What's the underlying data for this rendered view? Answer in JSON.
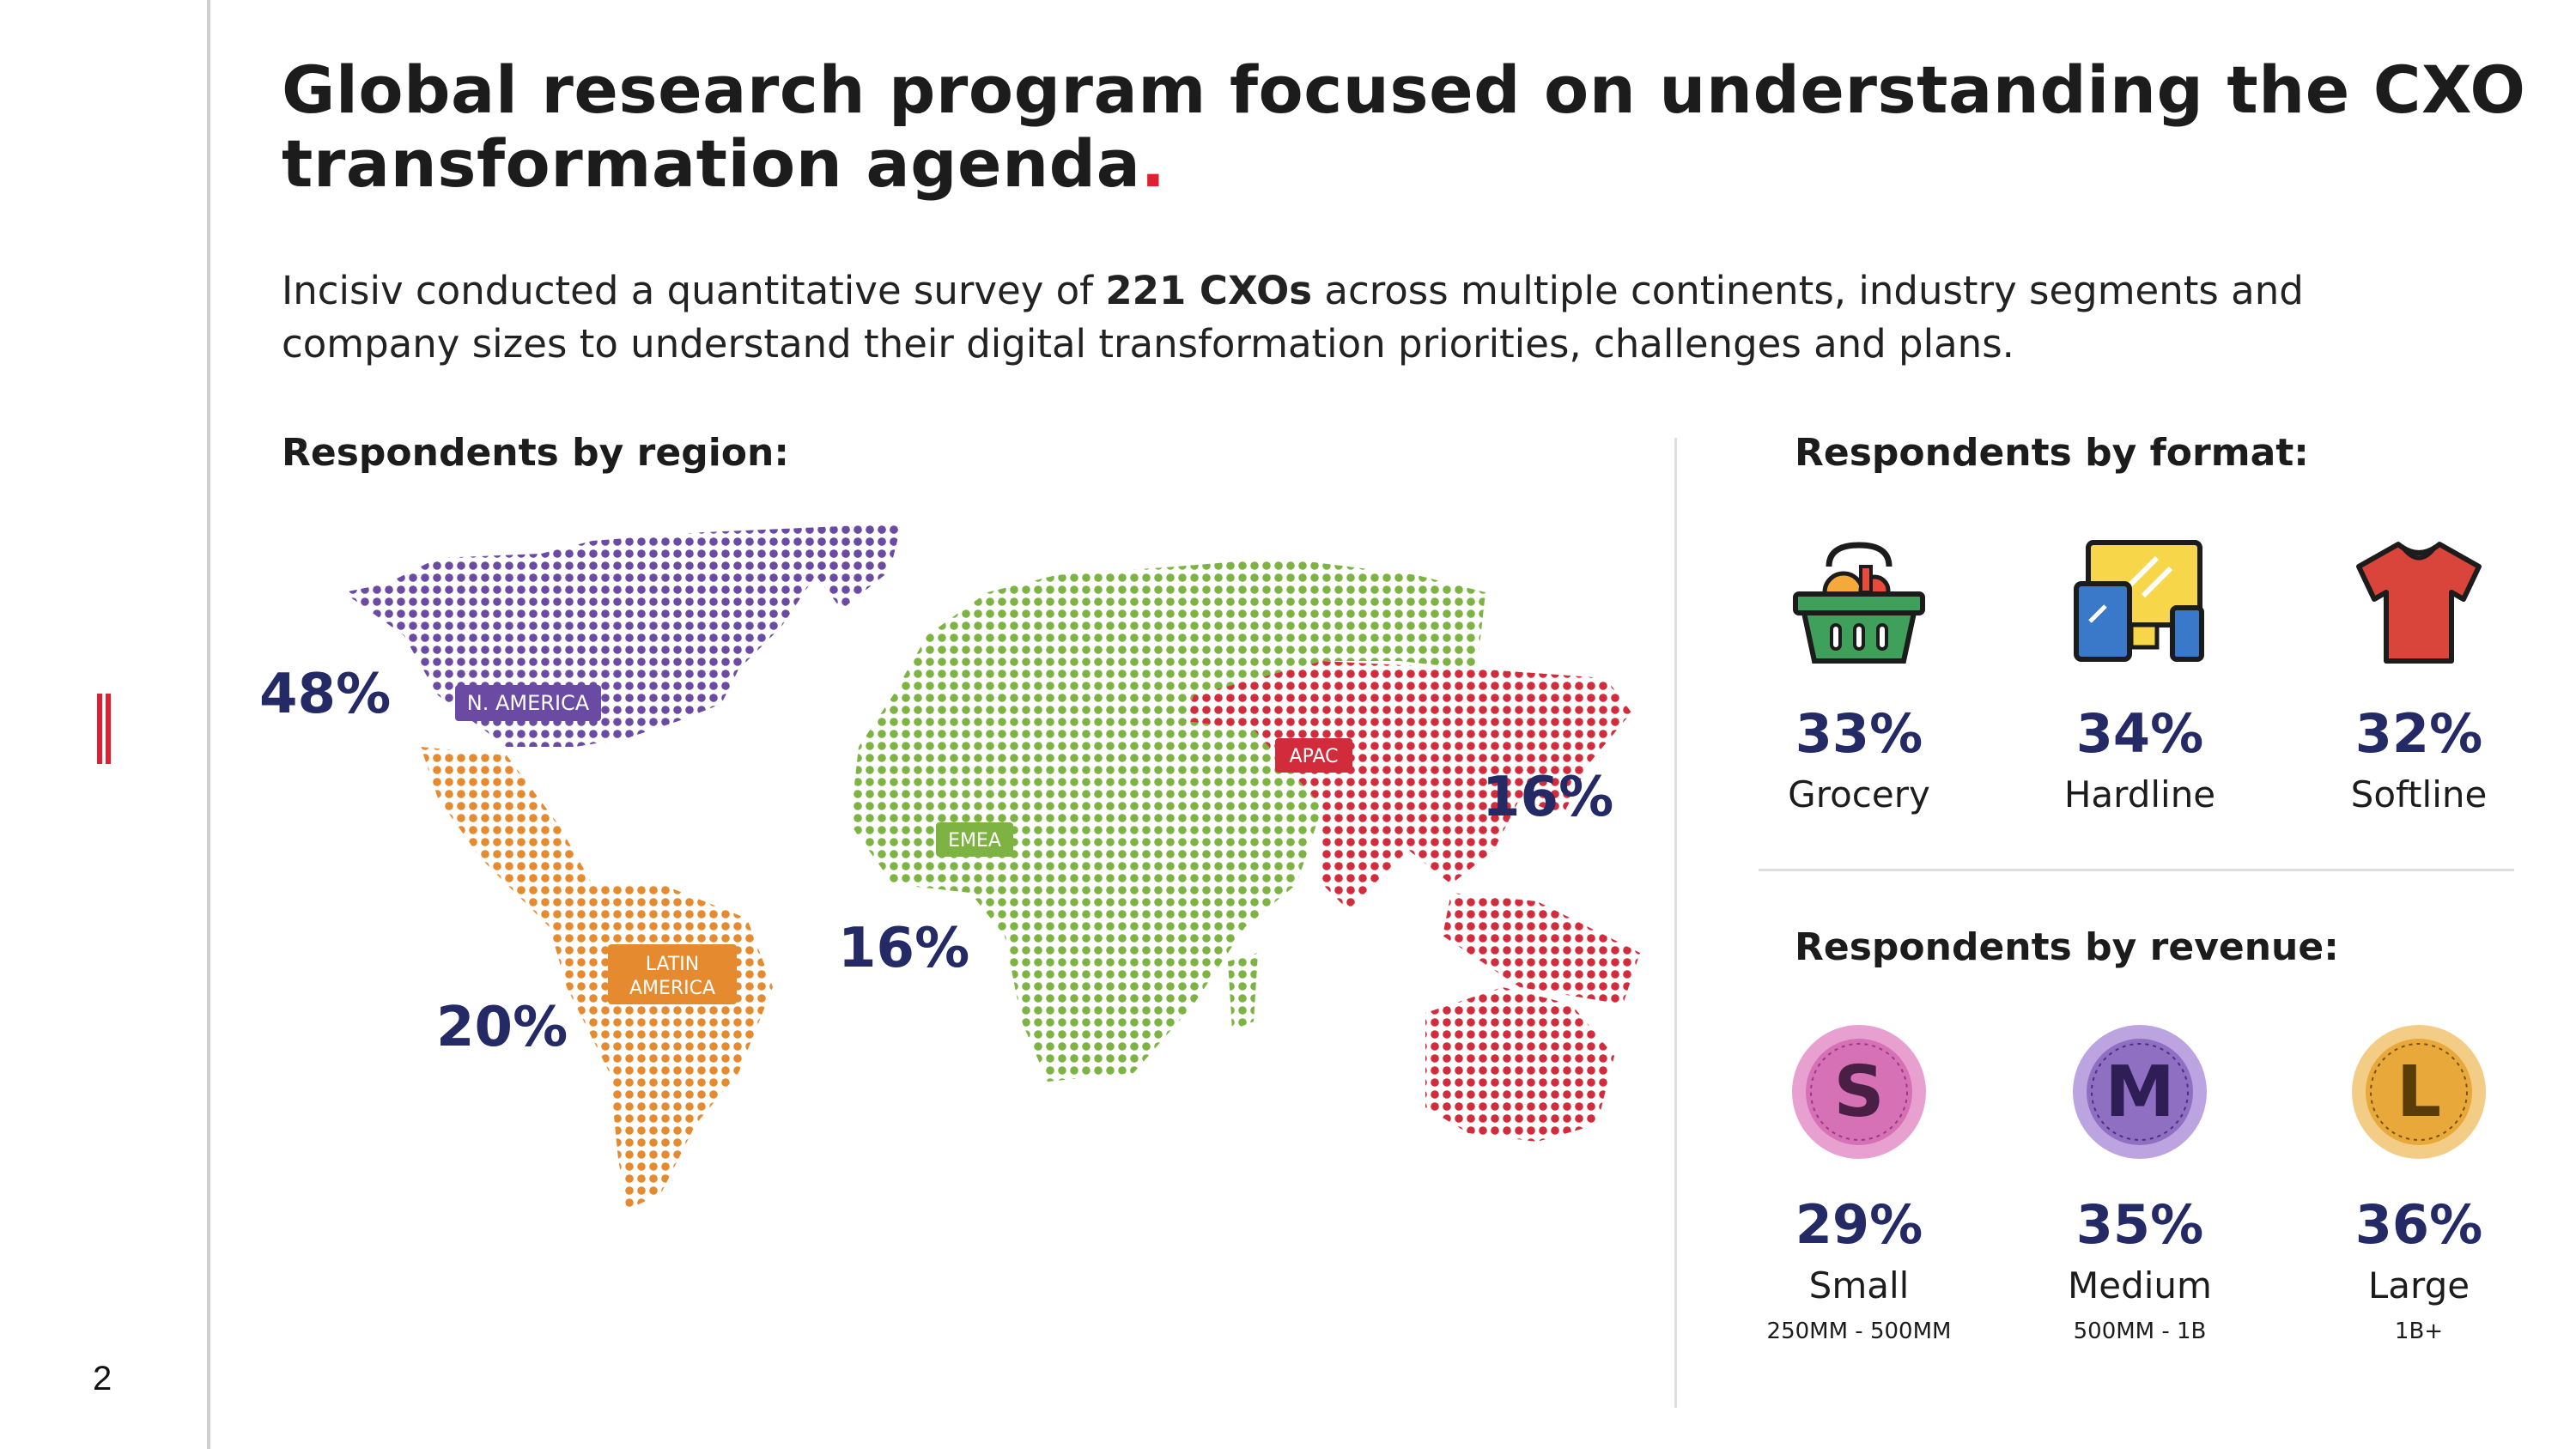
{
  "page": {
    "number": "2",
    "title_line1": "Global research program focused on understanding the CXO",
    "title_line2": "transformation agenda",
    "title_dot": ".",
    "intro_before": "Incisiv conducted a quantitative survey of ",
    "intro_bold": "221 CXOs",
    "intro_after": " across multiple continents, industry segments and company sizes to understand their digital transformation priorities, challenges and plans."
  },
  "colors": {
    "accent": "#e01f30",
    "navy": "#242a66",
    "n_america": "#6a4aa3",
    "latin_america": "#e58a2f",
    "emea": "#7cb342",
    "apac": "#d22b3b"
  },
  "region": {
    "heading": "Respondents by region:",
    "items": [
      {
        "name": "N. AMERICA",
        "pct": "48%"
      },
      {
        "name_line1": "LATIN",
        "name_line2": "AMERICA",
        "pct": "20%"
      },
      {
        "name": "EMEA",
        "pct": "16%"
      },
      {
        "name": "APAC",
        "pct": "16%"
      }
    ]
  },
  "format": {
    "heading": "Respondents by format:",
    "items": [
      {
        "icon": "grocery-basket-icon",
        "pct": "33%",
        "label": "Grocery"
      },
      {
        "icon": "devices-icon",
        "pct": "34%",
        "label": "Hardline"
      },
      {
        "icon": "tshirt-icon",
        "pct": "32%",
        "label": "Softline"
      }
    ]
  },
  "revenue": {
    "heading": "Respondents by revenue:",
    "items": [
      {
        "letter": "S",
        "pct": "29%",
        "label": "Small",
        "range": "250MM - 500MM",
        "color": "#d571b4"
      },
      {
        "letter": "M",
        "pct": "35%",
        "label": "Medium",
        "range": "500MM - 1B",
        "color": "#8f6fc2"
      },
      {
        "letter": "L",
        "pct": "36%",
        "label": "Large",
        "range": "1B+",
        "color": "#e8a83a"
      }
    ]
  }
}
